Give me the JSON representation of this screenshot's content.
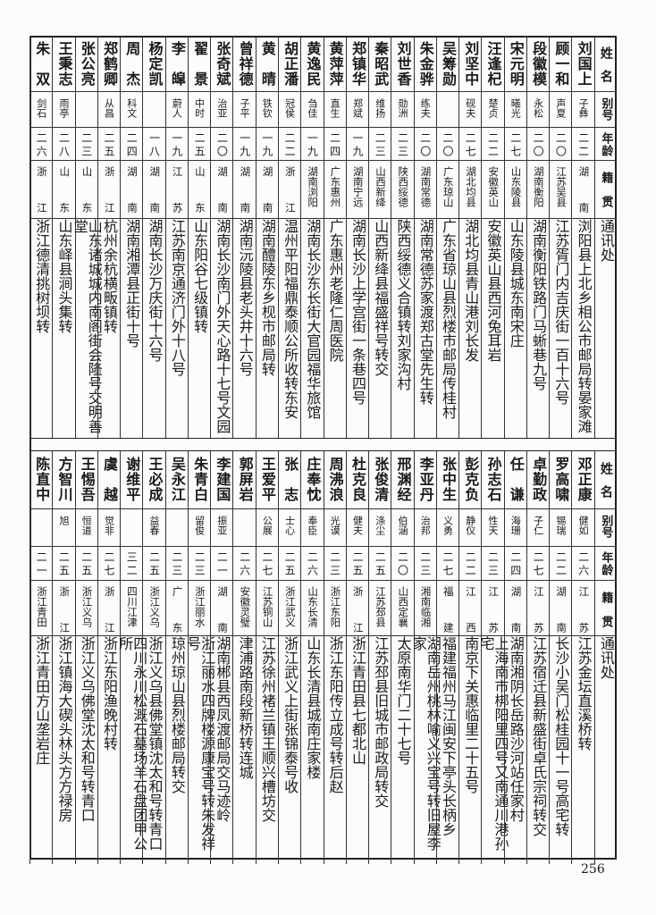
{
  "headers": {
    "name": "姓名",
    "alias": "别号",
    "age": "年龄",
    "native": "籍贯",
    "address": "通讯处"
  },
  "top_table": [
    {
      "name": "刘国上",
      "alias": "子彝",
      "age": "二二",
      "native": "湖南",
      "address": "浏阳县上北乡相公市邮局转晏家滩"
    },
    {
      "name": "顾一和",
      "alias": "声夏",
      "age": "二〇",
      "native": "江苏吴县",
      "address": "江苏胥门内吉庆街一百十六号"
    },
    {
      "name": "段徽模",
      "alias": "永松",
      "age": "二〇",
      "native": "湖南衡阳",
      "address": "湖南衡阳铁路门马蜥巷九号"
    },
    {
      "name": "宋元明",
      "alias": "曦光",
      "age": "二七",
      "native": "山东陵县",
      "address": "山东陵县城东南宋庄"
    },
    {
      "name": "汪逢杞",
      "alias": "楚贞",
      "age": "二二",
      "native": "安徽英山",
      "address": "安徽英山县西河兔耳岩"
    },
    {
      "name": "刘坚中",
      "alias": "砚夫",
      "age": "二七",
      "native": "湖北均县",
      "address": "湖北均县青山港刘长发"
    },
    {
      "name": "吴筹勋",
      "alias": "",
      "age": "二〇",
      "native": "广东琼山",
      "address": "广东省琼山县烈楼市邮局传桂村"
    },
    {
      "name": "朱金骅",
      "alias": "练夫",
      "age": "二〇",
      "native": "湖南常德",
      "address": "湖南常德苏家渡郑古堂先生转"
    },
    {
      "name": "刘世香",
      "alias": "勋洲",
      "age": "二三",
      "native": "陕西绥德",
      "address": "陕西绥德义合镇转刘家沟村"
    },
    {
      "name": "秦昭武",
      "alias": "维扬",
      "age": "二三",
      "native": "山西新绛",
      "address": "山西新绛县福盛祥号转交"
    },
    {
      "name": "郑镇华",
      "alias": "郑斌",
      "age": "一九",
      "native": "湖南宁远",
      "address": "湖南长沙上学宫街一条巷四号"
    },
    {
      "name": "黄萍萍",
      "alias": "直生",
      "age": "二四",
      "native": "广东惠州",
      "address": "广东惠州老隆仁周医院"
    },
    {
      "name": "黄逸民",
      "alias": "刍佳",
      "age": "一九",
      "native": "湖南浏阳",
      "address": "湖南长沙东长街大官园福华旅馆"
    },
    {
      "name": "胡正潘",
      "alias": "冠侯",
      "age": "二二",
      "native": "浙江",
      "address": "温州平阳福鼎泰顺公所收转东安"
    },
    {
      "name": "黄晴",
      "alias": "铁钦",
      "age": "一九",
      "native": "湖南",
      "address": "湖南醴陵东乡枧市邮局转"
    },
    {
      "name": "曾祥德",
      "alias": "子平",
      "age": "一九",
      "native": "湖南",
      "address": "湖南沅陵县老头井十六号"
    },
    {
      "name": "张奇斌",
      "alias": "治亚",
      "age": "二〇",
      "native": "湖南",
      "address": "湖南长沙南门外天心路十七号文园"
    },
    {
      "name": "翟景",
      "alias": "中时",
      "age": "二五",
      "native": "山东",
      "address": "山东阳谷七级镇转"
    },
    {
      "name": "李皡",
      "alias": "蔚人",
      "age": "一九",
      "native": "江苏",
      "address": "江苏南京通济门外十八号"
    },
    {
      "name": "杨定凯",
      "alias": "",
      "age": "一八",
      "native": "湖南",
      "address": "湖南长沙万庆街十六号"
    },
    {
      "name": "周杰",
      "alias": "科文",
      "age": "二四",
      "native": "湖南",
      "address": "湖南湘潭县正街十号"
    },
    {
      "name": "郑鹤卿",
      "alias": "从昌",
      "age": "二五",
      "native": "浙江",
      "address": "杭州余杭横畈镇转"
    },
    {
      "name": "张公亮",
      "alias": "",
      "age": "二三",
      "native": "山东",
      "address": "山东诸城城内南阁街会隆号交明善堂"
    },
    {
      "name": "王秉志",
      "alias": "雨亭",
      "age": "二八",
      "native": "山东",
      "address": "山东峄县涧头集转"
    },
    {
      "name": "朱双",
      "alias": "剑石",
      "age": "二六",
      "native": "浙江",
      "address": "浙江德清挑树坝转"
    }
  ],
  "bottom_table": [
    {
      "name": "邓正康",
      "alias": "健如",
      "age": "二六",
      "native": "江苏",
      "address": "江苏金坛直溪桥转"
    },
    {
      "name": "罗高啸",
      "alias": "锡瑞",
      "age": "二二",
      "native": "湖南",
      "address": "长沙小吴门松桂园十一号高宅转"
    },
    {
      "name": "卓勤政",
      "alias": "子仁",
      "age": "二七",
      "native": "江苏",
      "address": "江苏宿迁县新盛街卓氏宗祠转交"
    },
    {
      "name": "任谦",
      "alias": "海珊",
      "age": "二四",
      "native": "湖南",
      "address": "湖南湘阴长岳路沙河站任家村"
    },
    {
      "name": "孙志石",
      "alias": "性天",
      "age": "二三",
      "native": "江苏",
      "address": "上海南市梆阳里四号又南通川港孙宅"
    },
    {
      "name": "彭克负",
      "alias": "静仪",
      "age": "二二",
      "native": "江西",
      "address": "南京下关惠临里二十五号"
    },
    {
      "name": "张中生",
      "alias": "义勇",
      "age": "二七",
      "native": "福建",
      "address": "福建福州马江闽安下亭头长柄乡"
    },
    {
      "name": "李亚丹",
      "alias": "治邦",
      "age": "二三",
      "native": "湘南临湘",
      "address": "湖南岳州桃林喻义兴宝号转旧屋李家"
    },
    {
      "name": "邢渊经",
      "alias": "伯涵",
      "age": "二〇",
      "native": "山西定襄",
      "address": "太原南华门二十七号"
    },
    {
      "name": "张俊清",
      "alias": "涤尘",
      "age": "二五",
      "native": "江苏邳县",
      "address": "江苏邳县旧城市邮政局转交"
    },
    {
      "name": "杜克良",
      "alias": "健夫",
      "age": "二五",
      "native": "浙江",
      "address": "浙江青田县七都北山"
    },
    {
      "name": "周沸浪",
      "alias": "光谟",
      "age": "二三",
      "native": "浙江东阳",
      "address": "浙江东阳传立成号转后赵"
    },
    {
      "name": "庄奉忱",
      "alias": "奉臣",
      "age": "二六",
      "native": "山东长清",
      "address": "山东长清县城南庄家楼"
    },
    {
      "name": "张志",
      "alias": "士心",
      "age": "二五",
      "native": "浙江武义",
      "address": "浙江武义上街张锦泰号收"
    },
    {
      "name": "王爱平",
      "alias": "公展",
      "age": "二七",
      "native": "江苏铜山",
      "address": "江苏徐州褚兰镇王顺兴槽坊交"
    },
    {
      "name": "郭屏岩",
      "alias": "",
      "age": "二六",
      "native": "安徽灵璧",
      "address": "津浦路南段新桥转连城"
    },
    {
      "name": "李建国",
      "alias": "振亚",
      "age": "二一",
      "native": "湖南",
      "address": "湖南郴县西凤渡邮局交马迹岭"
    },
    {
      "name": "朱青白",
      "alias": "留俊",
      "age": "二三",
      "native": "浙江丽水",
      "address": "浙江丽水四牌楼源康宝号转朱发祥号"
    },
    {
      "name": "吴永江",
      "alias": "",
      "age": "二三",
      "native": "广东",
      "address": "琼州琼山县烈楼邮局转交"
    },
    {
      "name": "王必成",
      "alias": "益春",
      "age": "二五",
      "native": "浙江义乌",
      "address": "浙江义乌县佛堂镇沈太和号转青口"
    },
    {
      "name": "谢维平",
      "alias": "",
      "age": "三二",
      "native": "四川江津",
      "address": "四川永川松溉石墓场羊石盘团甲公所"
    },
    {
      "name": "虞越",
      "alias": "觉非",
      "age": "二七",
      "native": "浙江",
      "address": "浙江东阳渔晚村转"
    },
    {
      "name": "王惕吾",
      "alias": "恒道",
      "age": "二五",
      "native": "浙江义乌",
      "address": "浙江义乌佛堂沈太和号转青口"
    },
    {
      "name": "方智川",
      "alias": "旭",
      "age": "二五",
      "native": "浙江",
      "address": "浙江镇海大碶头林头方方禄房"
    },
    {
      "name": "陈直中",
      "alias": "",
      "age": "二一",
      "native": "浙江青田",
      "address": "浙江青田方山垄岩庄"
    }
  ],
  "page_number": "256"
}
